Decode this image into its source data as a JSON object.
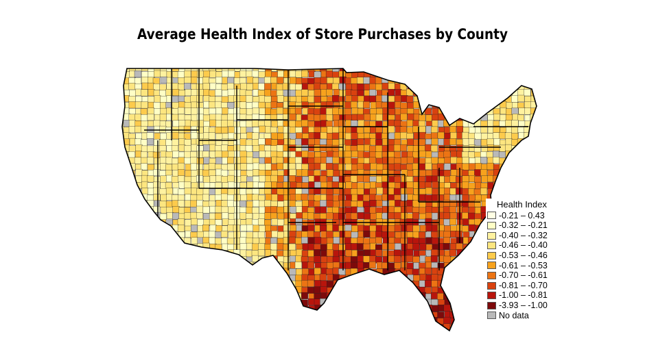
{
  "title": "Average Health Index of Store Purchases by County",
  "legend": {
    "title": "Health Index",
    "items": [
      {
        "label": "-0.21 – 0.43",
        "color": "#ffffe4"
      },
      {
        "label": "-0.32 – -0.21",
        "color": "#ffffc6"
      },
      {
        "label": "-0.40 – -0.32",
        "color": "#fff2a0"
      },
      {
        "label": "-0.46 – -0.40",
        "color": "#fde680"
      },
      {
        "label": "-0.53 – -0.46",
        "color": "#fdcb4c"
      },
      {
        "label": "-0.61 – -0.53",
        "color": "#f7a21d"
      },
      {
        "label": "-0.70 – -0.61",
        "color": "#ec7414"
      },
      {
        "label": "-0.81 – -0.70",
        "color": "#d9420f"
      },
      {
        "label": "-1.00 – -0.81",
        "color": "#b8150c"
      },
      {
        "label": "-3.93 – -1.00",
        "color": "#7d0a0b"
      },
      {
        "label": "No data",
        "color": "#b9b9b9"
      }
    ]
  }
}
